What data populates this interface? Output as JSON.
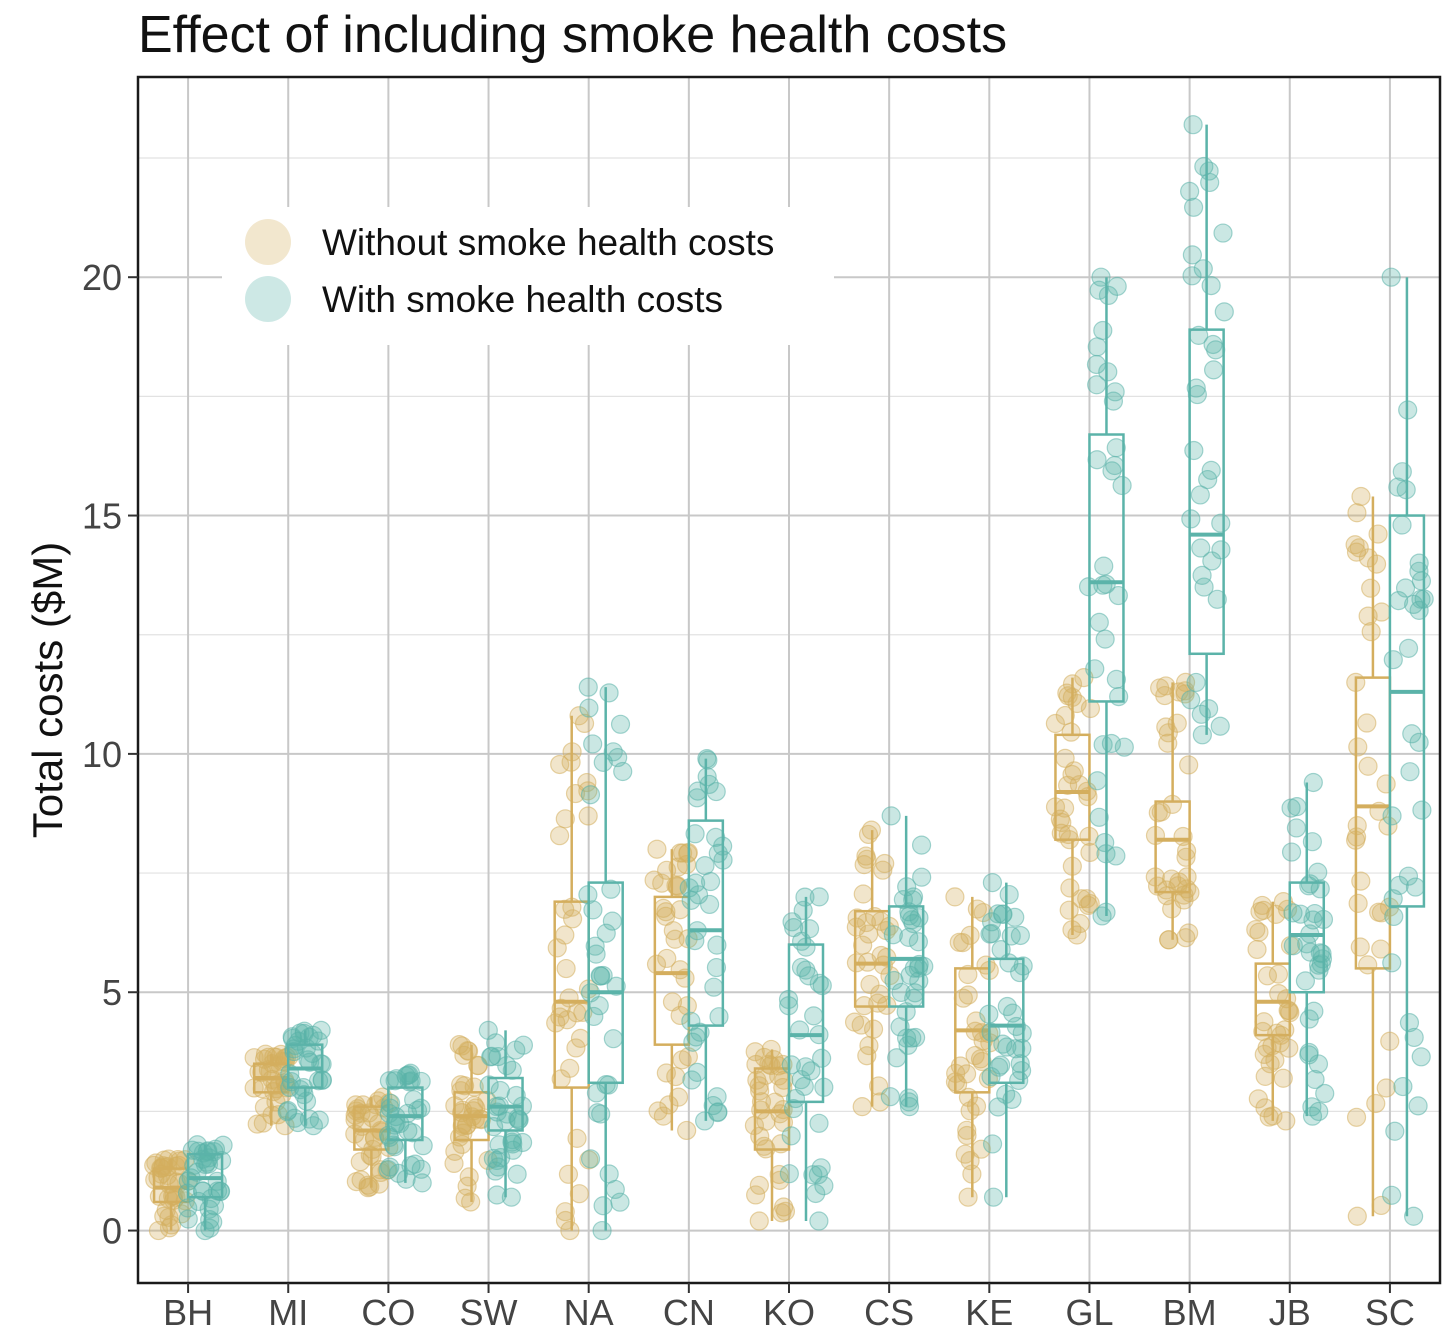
{
  "chart_data": {
    "type": "box",
    "title": "Effect of including smoke health costs",
    "xlabel": "",
    "ylabel": "Total costs ($M)",
    "ylim": [
      -1.1,
      24.2
    ],
    "yticks": [
      0,
      5,
      10,
      15,
      20
    ],
    "grid": true,
    "legend_position": "top-left",
    "categories": [
      "BH",
      "MI",
      "CO",
      "SW",
      "NA",
      "CN",
      "KO",
      "CS",
      "KE",
      "GL",
      "BM",
      "JB",
      "SC"
    ],
    "series": [
      {
        "name": "Without smoke health costs",
        "color": "#D4AE5E",
        "boxes": [
          {
            "min": 0.0,
            "q1": 0.6,
            "median": 0.9,
            "q3": 1.3,
            "max": 1.5
          },
          {
            "min": 2.2,
            "q1": 2.9,
            "median": 3.2,
            "q3": 3.5,
            "max": 3.7
          },
          {
            "min": 0.9,
            "q1": 1.7,
            "median": 2.1,
            "q3": 2.6,
            "max": 2.8
          },
          {
            "min": 0.6,
            "q1": 1.9,
            "median": 2.4,
            "q3": 2.9,
            "max": 3.9
          },
          {
            "min": 0.0,
            "q1": 3.0,
            "median": 4.8,
            "q3": 6.9,
            "max": 10.8
          },
          {
            "min": 2.1,
            "q1": 3.9,
            "median": 5.4,
            "q3": 7.0,
            "max": 8.0
          },
          {
            "min": 0.2,
            "q1": 1.7,
            "median": 2.5,
            "q3": 3.4,
            "max": 3.8
          },
          {
            "min": 2.6,
            "q1": 4.7,
            "median": 5.6,
            "q3": 6.7,
            "max": 8.4
          },
          {
            "min": 0.7,
            "q1": 2.9,
            "median": 4.2,
            "q3": 5.5,
            "max": 7.0
          },
          {
            "min": 6.2,
            "q1": 8.2,
            "median": 9.2,
            "q3": 10.4,
            "max": 11.6
          },
          {
            "min": 6.1,
            "q1": 7.1,
            "median": 8.2,
            "q3": 9.0,
            "max": 11.5
          },
          {
            "min": 2.3,
            "q1": 4.1,
            "median": 4.8,
            "q3": 5.6,
            "max": 6.9
          },
          {
            "min": 0.3,
            "q1": 5.5,
            "median": 8.9,
            "q3": 11.6,
            "max": 15.4
          }
        ]
      },
      {
        "name": "With smoke health costs",
        "color": "#5BB3A9",
        "boxes": [
          {
            "min": 0.0,
            "q1": 0.7,
            "median": 1.1,
            "q3": 1.6,
            "max": 1.8
          },
          {
            "min": 2.2,
            "q1": 3.0,
            "median": 3.4,
            "q3": 3.9,
            "max": 4.2
          },
          {
            "min": 1.0,
            "q1": 1.9,
            "median": 2.4,
            "q3": 3.0,
            "max": 3.3
          },
          {
            "min": 0.7,
            "q1": 2.1,
            "median": 2.6,
            "q3": 3.2,
            "max": 4.2
          },
          {
            "min": 0.0,
            "q1": 3.1,
            "median": 5.0,
            "q3": 7.3,
            "max": 11.4
          },
          {
            "min": 2.3,
            "q1": 4.3,
            "median": 6.3,
            "q3": 8.6,
            "max": 9.9
          },
          {
            "min": 0.2,
            "q1": 2.7,
            "median": 4.1,
            "q3": 6.0,
            "max": 7.0
          },
          {
            "min": 2.6,
            "q1": 4.7,
            "median": 5.7,
            "q3": 6.8,
            "max": 8.7
          },
          {
            "min": 0.7,
            "q1": 3.1,
            "median": 4.3,
            "q3": 5.7,
            "max": 7.3
          },
          {
            "min": 6.6,
            "q1": 11.1,
            "median": 13.6,
            "q3": 16.7,
            "max": 20.0
          },
          {
            "min": 10.4,
            "q1": 12.1,
            "median": 14.6,
            "q3": 18.9,
            "max": 23.2
          },
          {
            "min": 2.4,
            "q1": 5.0,
            "median": 6.2,
            "q3": 7.3,
            "max": 9.4
          },
          {
            "min": 0.3,
            "q1": 6.8,
            "median": 11.3,
            "q3": 15.0,
            "max": 20.0
          }
        ]
      }
    ]
  }
}
